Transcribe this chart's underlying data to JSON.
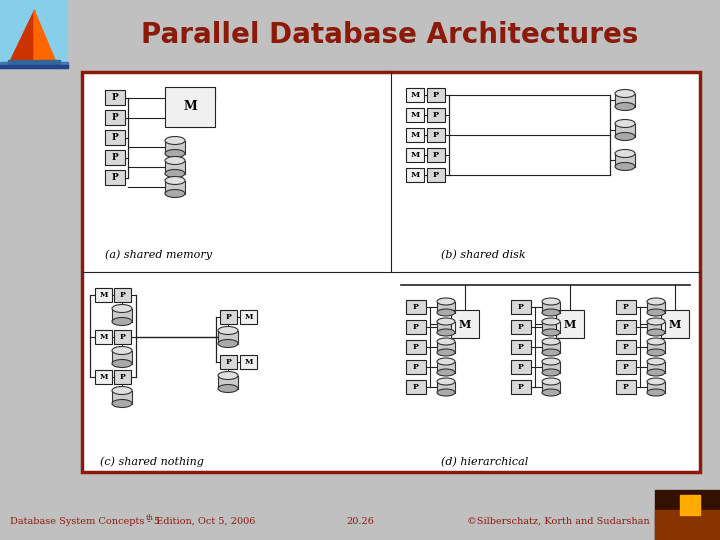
{
  "title": "Parallel Database Architectures",
  "title_color": "#8B1A0A",
  "title_fontsize": 20,
  "slide_bg": "#C0C0C0",
  "content_bg": "#FFFFFF",
  "border_color": "#8B1A0A",
  "border_linewidth": 2.5,
  "footer_left": "Database System Concepts - 5",
  "footer_left_super": "th",
  "footer_left_rest": " Edition, Oct 5, 2006",
  "footer_center": "20.26",
  "footer_right": "©Silberschatz, Korth and Sudarshan",
  "footer_color": "#8B1A0A",
  "footer_fontsize": 7,
  "label_a": "(a) shared memory",
  "label_b": "(b) shared disk",
  "label_c": "(c) shared nothing",
  "label_d": "(d) hierarchical"
}
